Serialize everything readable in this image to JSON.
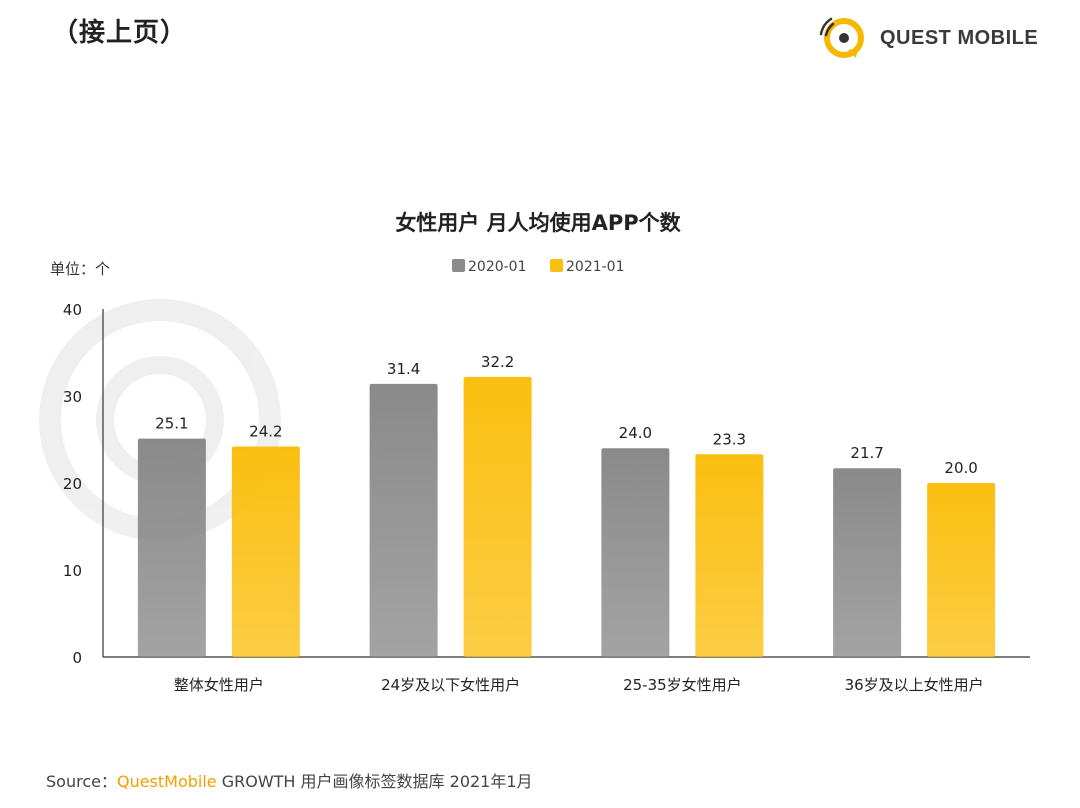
{
  "header": {
    "title": "（接上页）"
  },
  "logo": {
    "text": "QUEST MOBILE",
    "color": "#f5b800"
  },
  "footer": {
    "prefix": "Source：",
    "brand": "QuestMobile",
    "suffix": " GROWTH 用户画像标签数据库 2021年1月"
  },
  "colors": {
    "series_2020": "#8a8a8a",
    "series_2021": "#fbbf10"
  },
  "chart_data": {
    "type": "bar",
    "title": "女性用户 月人均使用APP个数",
    "unit_label": "单位：个",
    "categories": [
      "整体女性用户",
      "24岁及以下女性用户",
      "25-35岁女性用户",
      "36岁及以上女性用户"
    ],
    "series": [
      {
        "name": "2020-01",
        "values": [
          25.1,
          31.4,
          24.0,
          21.7
        ]
      },
      {
        "name": "2021-01",
        "values": [
          24.2,
          32.2,
          23.3,
          20.0
        ]
      }
    ],
    "ylim": [
      0,
      40
    ],
    "yticks": [
      0,
      10,
      20,
      30,
      40
    ],
    "legend_position": "top-center",
    "grid": false
  }
}
